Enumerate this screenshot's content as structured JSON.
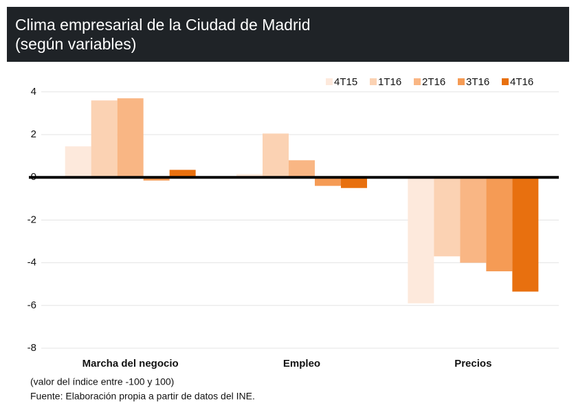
{
  "chart_data": {
    "type": "bar",
    "title": "Clima empresarial de la Ciudad de Madrid",
    "subtitle": "(según variables)",
    "categories": [
      "Marcha del negocio",
      "Empleo",
      "Precios"
    ],
    "series": [
      {
        "name": "4T15",
        "color": "#fde9dc",
        "values": [
          1.45,
          0.15,
          -5.9
        ]
      },
      {
        "name": "1T16",
        "color": "#fbd2b3",
        "values": [
          3.6,
          2.05,
          -3.7
        ]
      },
      {
        "name": "2T16",
        "color": "#f9b684",
        "values": [
          3.7,
          0.8,
          -4.0
        ]
      },
      {
        "name": "3T16",
        "color": "#f59b55",
        "values": [
          -0.15,
          -0.4,
          -4.4
        ]
      },
      {
        "name": "4T16",
        "color": "#e8700f",
        "values": [
          0.35,
          -0.5,
          -5.35
        ]
      }
    ],
    "ylim": [
      -8,
      4.4
    ],
    "yticks": [
      4,
      2,
      0,
      -2,
      -4,
      -6,
      -8
    ],
    "grid": true,
    "legend": "top-right",
    "notes": [
      "(valor del índice entre -100 y 100)",
      "Fuente: Elaboración propia a partir de datos del INE."
    ]
  }
}
